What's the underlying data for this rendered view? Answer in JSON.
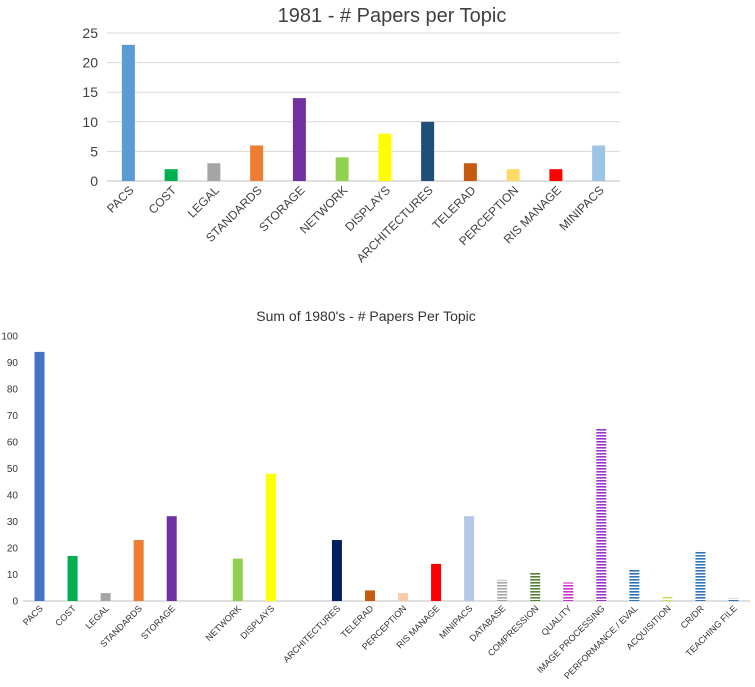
{
  "chart_data": [
    {
      "type": "bar",
      "title": "1981 - # Papers per Topic",
      "xlabel": "",
      "ylabel": "",
      "ylim": [
        0,
        25
      ],
      "yticks": [
        0,
        5,
        10,
        15,
        20,
        25
      ],
      "grid": true,
      "legend": "none",
      "categories": [
        "PACS",
        "COST",
        "LEGAL",
        "STANDARDS",
        "STORAGE",
        "NETWORK",
        "DISPLAYS",
        "ARCHITECTURES",
        "TELERAD",
        "PERCEPTION",
        "RIS MANAGE",
        "MINIPACS"
      ],
      "values": [
        23,
        2,
        3,
        6,
        14,
        4,
        8,
        10,
        3,
        2,
        2,
        6
      ],
      "colors": [
        "#5b9bd5",
        "#00b050",
        "#a5a5a5",
        "#ed7d31",
        "#7030a0",
        "#92d050",
        "#ffff00",
        "#1f4e79",
        "#c55a11",
        "#ffd966",
        "#ff0000",
        "#9dc3e6"
      ]
    },
    {
      "type": "bar",
      "title": "Sum of 1980's - # Papers Per  Topic",
      "xlabel": "",
      "ylabel": "",
      "ylim": [
        0,
        100
      ],
      "yticks": [
        0,
        10,
        20,
        30,
        40,
        50,
        60,
        70,
        80,
        90,
        100
      ],
      "grid": false,
      "legend": "none",
      "categories": [
        "PACS",
        "COST",
        "LEGAL",
        "STANDARDS",
        "STORAGE",
        "",
        "NETWORK",
        "DISPLAYS",
        "",
        "ARCHITECTURES",
        "TELERAD",
        "PERCEPTION",
        "RIS MANAGE",
        "MINIPACS",
        "DATABASE",
        "COMPRESSION",
        "QUALITY",
        "IMAGE PROCESSING",
        "PERFORMANCE / EVAL",
        "ACQUISITION",
        "CR/DR",
        "TEACHING FILE"
      ],
      "values": [
        94,
        17,
        3,
        23,
        32,
        null,
        16,
        48,
        null,
        23,
        4,
        3,
        14,
        32,
        8,
        11,
        7,
        65,
        12,
        2,
        19,
        1
      ],
      "colors": [
        "#4472c4",
        "#00b050",
        "#a5a5a5",
        "#ed7d31",
        "#7030a0",
        "",
        "#92d050",
        "#ffff00",
        "",
        "#002060",
        "#c55a11",
        "#f8cbad",
        "#ff0000",
        "#b4c7e7",
        "#a5a5a5",
        "#548235",
        "#cc33cc",
        "#9933cc",
        "#2e75b6",
        "#d6dc5c",
        "#2e75b6",
        "#2e75b6"
      ],
      "striped": [
        false,
        false,
        false,
        false,
        false,
        false,
        false,
        false,
        false,
        false,
        false,
        false,
        false,
        false,
        true,
        true,
        true,
        true,
        true,
        true,
        true,
        true
      ]
    }
  ]
}
